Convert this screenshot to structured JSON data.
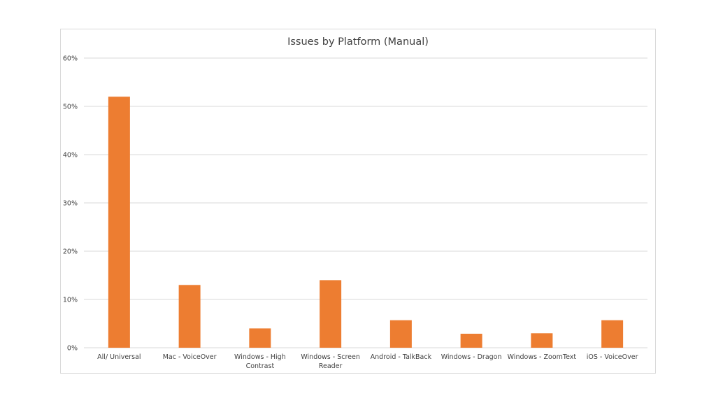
{
  "chart_data": {
    "type": "bar",
    "title": "Issues by Platform (Manual)",
    "xlabel": "",
    "ylabel": "",
    "ylim": [
      0,
      60
    ],
    "y_ticks": [
      "0%",
      "10%",
      "20%",
      "30%",
      "40%",
      "50%",
      "60%"
    ],
    "y_tick_values": [
      0,
      10,
      20,
      30,
      40,
      50,
      60
    ],
    "categories": [
      [
        "All/ Universal"
      ],
      [
        "Mac - VoiceOver"
      ],
      [
        "Windows - High",
        "Contrast"
      ],
      [
        "Windows - Screen",
        "Reader"
      ],
      [
        "Android - TalkBack"
      ],
      [
        "Windows - Dragon"
      ],
      [
        "Windows - ZoomText"
      ],
      [
        "iOS - VoiceOver"
      ]
    ],
    "values": [
      52,
      13,
      4,
      14,
      5.7,
      2.9,
      3,
      5.7
    ],
    "grid": true,
    "legend": "none",
    "colors": {
      "bar": "#ed7d31",
      "grid": "#d9d9d9",
      "text": "#404040"
    }
  }
}
